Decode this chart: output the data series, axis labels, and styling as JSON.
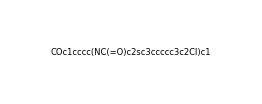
{
  "smiles": "COc1cccc(NC(=O)c2sc3ccccc3c2Cl)c1",
  "title": "",
  "figsize": [
    2.62,
    1.04
  ],
  "dpi": 100,
  "background_color": "#ffffff"
}
